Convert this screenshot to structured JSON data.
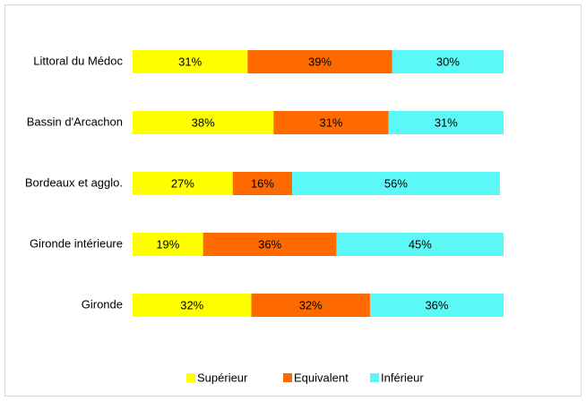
{
  "chart_data": {
    "type": "bar",
    "orientation": "horizontal",
    "stacked": true,
    "categories": [
      "Littoral du Médoc",
      "Bassin d'Arcachon",
      "Bordeaux et agglo.",
      "Gironde intérieure",
      "Gironde"
    ],
    "xlim": [
      0,
      100
    ],
    "series": [
      {
        "name": "Supérieur",
        "color": "#ffff00",
        "values": [
          31,
          38,
          27,
          19,
          32
        ],
        "value_labels": [
          "31%",
          "38%",
          "27%",
          "19%",
          "32%"
        ]
      },
      {
        "name": "Equivalent",
        "color": "#ff6a00",
        "values": [
          39,
          31,
          16,
          36,
          32
        ],
        "value_labels": [
          "39%",
          "31%",
          "16%",
          "36%",
          "32%"
        ]
      },
      {
        "name": "Inférieur",
        "color": "#5cf8f8",
        "values": [
          30,
          31,
          56,
          45,
          36
        ],
        "value_labels": [
          "30%",
          "31%",
          "56%",
          "45%",
          "36%"
        ]
      }
    ],
    "legend": "bottom"
  }
}
